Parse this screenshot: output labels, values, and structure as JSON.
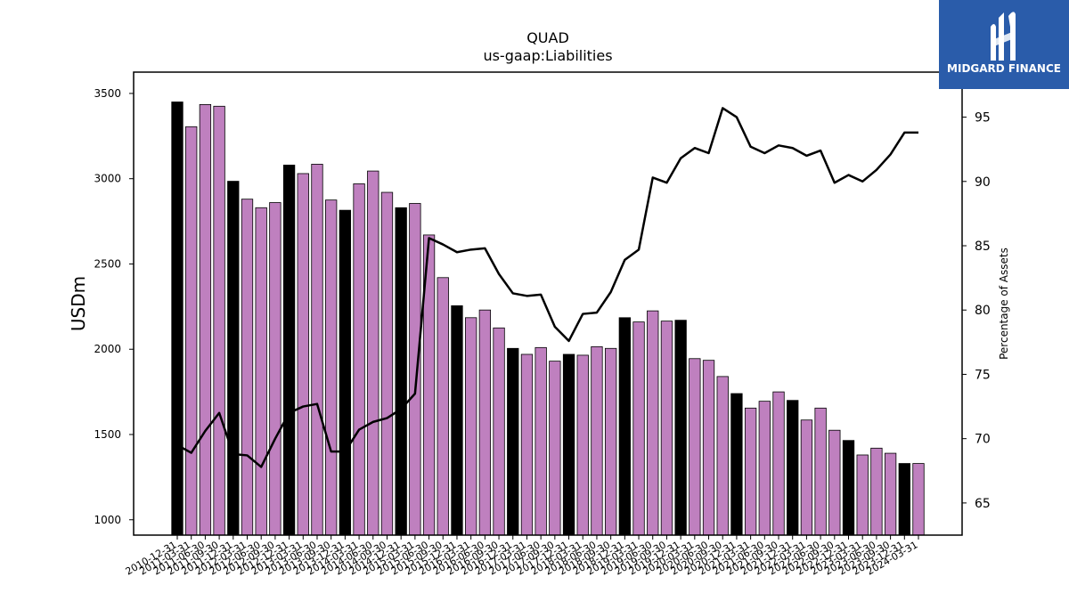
{
  "chart_data": {
    "type": "bar",
    "title": "QUAD",
    "subtitle": "us-gaap:Liabilities",
    "ylabel": "USDm",
    "y2label": "Percentage of Assets",
    "ylim": [
      910,
      3625
    ],
    "y2lim": [
      62.5,
      98.5
    ],
    "yticks": [
      1000,
      1500,
      2000,
      2500,
      3000,
      3500
    ],
    "y2ticks": [
      65,
      70,
      75,
      80,
      85,
      90,
      95
    ],
    "categories": [
      "2010-12-31",
      "2011-03-31",
      "2011-06-30",
      "2011-09-30",
      "2011-12-31",
      "2012-03-31",
      "2012-06-30",
      "2012-09-30",
      "2012-12-31",
      "2013-03-31",
      "2013-06-30",
      "2013-09-30",
      "2013-12-31",
      "2014-03-31",
      "2014-06-30",
      "2014-09-30",
      "2014-12-31",
      "2015-03-31",
      "2015-06-30",
      "2015-09-30",
      "2015-12-31",
      "2016-03-31",
      "2016-06-30",
      "2016-09-30",
      "2016-12-31",
      "2017-03-31",
      "2017-06-30",
      "2017-09-30",
      "2017-12-31",
      "2018-03-31",
      "2018-06-30",
      "2018-09-30",
      "2018-12-31",
      "2019-03-31",
      "2019-06-30",
      "2019-09-30",
      "2019-12-31",
      "2020-03-31",
      "2020-06-30",
      "2020-09-30",
      "2020-12-31",
      "2021-03-31",
      "2021-06-30",
      "2021-09-30",
      "2021-12-31",
      "2022-03-31",
      "2022-06-30",
      "2022-09-30",
      "2022-12-31",
      "2023-03-31",
      "2023-06-30",
      "2023-09-30",
      "2023-12-31",
      "2024-03-31"
    ],
    "xtick_labels_visible": [
      "2010-12-31",
      "2011-03-31",
      "2011-06-30",
      "2011-09-30",
      "2011-12-31",
      "2012-03-31",
      "2012-06-30",
      "2012-09-30",
      "2012-12-31",
      "2013-03-31",
      "2013-06-30",
      "2013-09-30",
      "2013-12-31",
      "2014-03-31",
      "2014-06-30",
      "2014-09-30",
      "2014-12-31",
      "2015-03-31",
      "2015-06-30",
      "2015-09-30",
      "2015-12-31",
      "2016-03-31",
      "2016-06-30",
      "2016-09-30",
      "2016-12-31",
      "2017-03-31",
      "2017-06-30",
      "2017-09-30",
      "2017-12-31",
      "2018-03-31",
      "2018-06-30",
      "2018-09-30",
      "2018-12-31",
      "2019-03-31",
      "2019-06-30",
      "2019-09-30",
      "2019-12-31",
      "2020-03-31",
      "2020-06-30",
      "2020-09-30",
      "2020-12-31",
      "2021-03-31",
      "2021-06-30",
      "2021-09-30",
      "2021-12-31",
      "2022-03-31",
      "2022-06-30",
      "2022-09-30",
      "2022-12-31",
      "2023-03-31",
      "2023-06-30",
      "2023-09-30",
      "2023-12-31",
      "2024-03-31"
    ],
    "series": [
      {
        "type": "bar",
        "axis": "left",
        "values": [
          3450,
          3305,
          3435,
          3425,
          2985,
          2880,
          2830,
          2860,
          3080,
          3030,
          3085,
          2875,
          2815,
          2970,
          3045,
          2920,
          2830,
          2855,
          2670,
          2420,
          2255,
          2185,
          2230,
          2125,
          2005,
          1970,
          2010,
          1930,
          1970,
          1965,
          2015,
          2005,
          2185,
          2160,
          2225,
          2165,
          2170,
          1945,
          1935,
          1840,
          1740,
          1655,
          1695,
          1750,
          1700,
          1585,
          1655,
          1525,
          1465,
          1380,
          1420,
          1390,
          1330,
          1330
        ]
      },
      {
        "type": "line",
        "axis": "right",
        "values": [
          69.5,
          68.9,
          70.6,
          72.0,
          68.8,
          68.7,
          67.8,
          70.0,
          72.0,
          72.5,
          72.7,
          69.0,
          69.0,
          70.7,
          71.3,
          71.6,
          72.3,
          73.5,
          85.6,
          85.1,
          84.5,
          84.7,
          84.8,
          82.8,
          81.3,
          81.1,
          81.2,
          78.7,
          77.6,
          79.7,
          79.8,
          81.4,
          83.9,
          84.7,
          90.3,
          89.9,
          91.8,
          92.6,
          92.2,
          95.7,
          95.0,
          92.7,
          92.2,
          92.8,
          92.6,
          92.0,
          92.4,
          89.9,
          90.5,
          90.0,
          90.9,
          92.1,
          93.8,
          93.8
        ]
      }
    ],
    "colors": {
      "bar_default": "#bf80bf",
      "bar_year_end": "#000000",
      "line": "#000000"
    },
    "year_end_marker": "12-31",
    "grid": false,
    "legend": "none",
    "watermark": {
      "text": "MIDGARD FINANCE",
      "background": "#2a5caa",
      "text_color": "#ffffff"
    }
  }
}
